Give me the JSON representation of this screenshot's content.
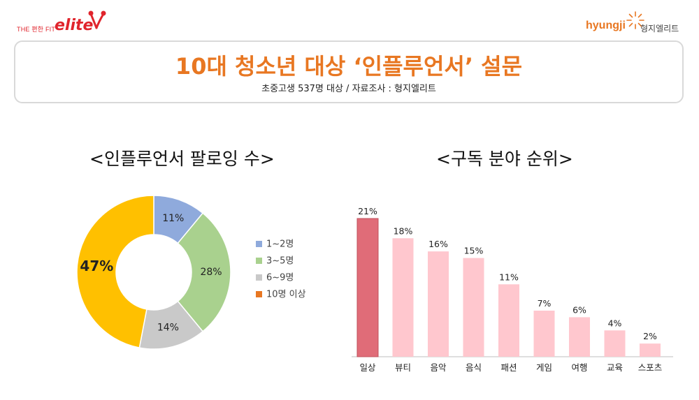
{
  "header": {
    "left_logo_small": "THE 편한 FIT",
    "left_logo_main": "elite",
    "right_logo_en": "hyungji",
    "right_logo_ko": "형지엘리트"
  },
  "title": "10대 청소년 대상 ‘인플루언서’ 설문",
  "subtitle": "초중고생 537명 대상 / 자료조사 : 형지엘리트",
  "chart_data": [
    {
      "type": "pie",
      "title": "<인플루언서 팔로잉 수>",
      "categories": [
        "1~2명",
        "3~5명",
        "6~9명",
        "10명 이상"
      ],
      "values": [
        11,
        28,
        14,
        47
      ],
      "labels": [
        "11%",
        "28%",
        "14%",
        "47%"
      ],
      "colors": [
        "#8faadc",
        "#a9d18e",
        "#c9c9c9",
        "#ffc000"
      ],
      "legend_colors": [
        "#8faadc",
        "#a9d18e",
        "#c9c9c9",
        "#e87722"
      ],
      "legend": "right"
    },
    {
      "type": "bar",
      "title": "<구독 분야 순위>",
      "categories": [
        "일상",
        "뷰티",
        "음악",
        "음식",
        "패션",
        "게임",
        "여행",
        "교육",
        "스포츠"
      ],
      "values": [
        21,
        18,
        16,
        15,
        11,
        7,
        6,
        4,
        2
      ],
      "labels": [
        "21%",
        "18%",
        "16%",
        "15%",
        "11%",
        "7%",
        "6%",
        "4%",
        "2%"
      ],
      "ylim": [
        0,
        21
      ],
      "highlight_color": "#e06c78",
      "bar_color": "#ffc7ce",
      "grid": false
    }
  ]
}
